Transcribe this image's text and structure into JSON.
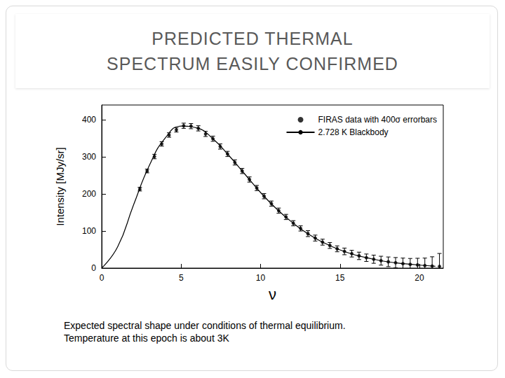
{
  "chart_data": {
    "type": "line",
    "title": "PREDICTED THERMAL SPECTRUM EASILY CONFIRMED",
    "annotations": [
      "Expected spectral shape under conditions of thermal equilibrium.",
      "Temperature at this epoch is about 3K"
    ],
    "x_label": "ν",
    "y_label": "Intensity [MJy/sr]",
    "xlim": [
      0,
      21.5
    ],
    "xticks": [
      0,
      5,
      10,
      15,
      20
    ],
    "ylim": [
      0,
      440
    ],
    "yticks": [
      0,
      100,
      200,
      300,
      400
    ],
    "grid": false,
    "legend": "upper right",
    "series": [
      {
        "name": "FIRAS data with 400σ errorbars",
        "type": "scatter",
        "marker": "circle",
        "color": "#000000",
        "x": [
          2.4,
          2.86,
          3.32,
          3.78,
          4.24,
          4.7,
          5.16,
          5.62,
          6.08,
          6.54,
          7.0,
          7.46,
          7.92,
          8.38,
          8.84,
          9.3,
          9.76,
          10.22,
          10.68,
          11.14,
          11.6,
          12.06,
          12.52,
          12.98,
          13.44,
          13.9,
          14.36,
          14.82,
          15.28,
          15.74,
          16.2,
          16.66,
          17.12,
          17.58,
          18.04,
          18.5,
          18.96,
          19.42,
          19.88,
          20.34,
          20.8,
          21.26
        ],
        "values": [
          213,
          262,
          301,
          335,
          359,
          373,
          384,
          383,
          377,
          362,
          349,
          328,
          308,
          285,
          262,
          239,
          216,
          194,
          174,
          155,
          138,
          121,
          107,
          93,
          81,
          70,
          61,
          52,
          45,
          39,
          33,
          28,
          24,
          20,
          17,
          14.5,
          12,
          10,
          8.5,
          7,
          5.5,
          4.5
        ],
        "errors": [
          5,
          5,
          6,
          6,
          6,
          6,
          7,
          7,
          7,
          7,
          7,
          7,
          7,
          7,
          7,
          7,
          7,
          7,
          7,
          7,
          7,
          7,
          7,
          8,
          8,
          8,
          8,
          8,
          9,
          9,
          10,
          10,
          11,
          12,
          13,
          14,
          15,
          16,
          18,
          20,
          25,
          35
        ]
      },
      {
        "name": "2.728 K Blackbody",
        "type": "line",
        "line_style": "solid",
        "color": "#000000",
        "x": [
          0,
          1,
          2,
          3,
          4,
          5,
          6,
          7,
          8,
          9,
          10,
          11,
          12,
          13,
          14,
          15,
          16,
          17,
          18,
          19,
          20,
          21
        ],
        "values": [
          0,
          57,
          170,
          277,
          351,
          383,
          378,
          349,
          304,
          254,
          204,
          160,
          123,
          92,
          68,
          49,
          35,
          25,
          17,
          12,
          8,
          5
        ]
      }
    ]
  }
}
